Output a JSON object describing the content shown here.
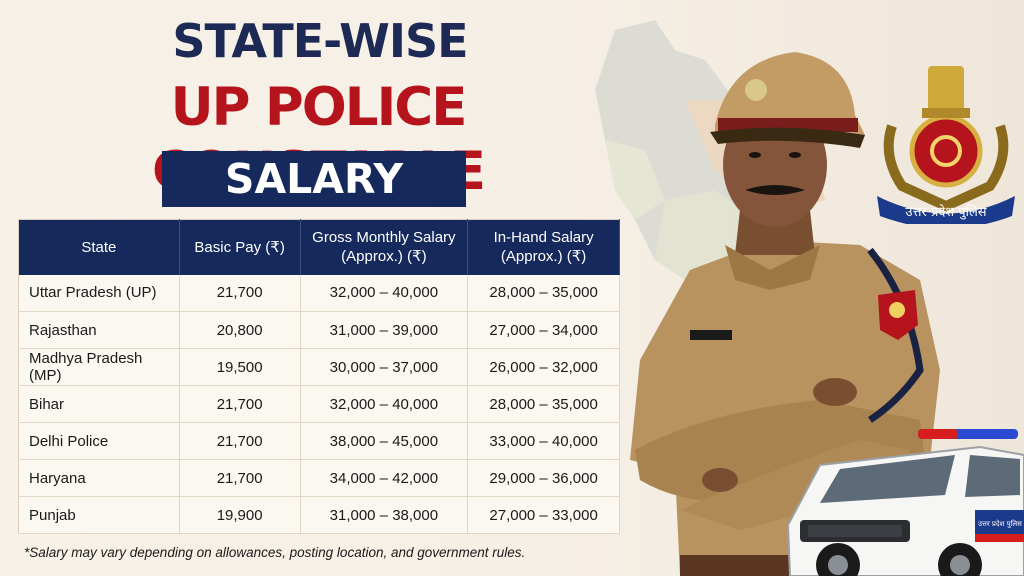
{
  "title": {
    "line1": "STATE-WISE",
    "line2": "UP POLICE CONSTABLE",
    "line3": "SALARY"
  },
  "table": {
    "headers": [
      {
        "line1": "State",
        "line2": ""
      },
      {
        "line1": "Basic Pay (₹)",
        "line2": ""
      },
      {
        "line1": "Gross Monthly Salary",
        "line2": "(Approx.) (₹)"
      },
      {
        "line1": "In-Hand Salary",
        "line2": "(Approx.) (₹)"
      }
    ],
    "rows": [
      [
        "Uttar Pradesh (UP)",
        "21,700",
        "32,000 – 40,000",
        "28,000 – 35,000"
      ],
      [
        "Rajasthan",
        "20,800",
        "31,000 – 39,000",
        "27,000 – 34,000"
      ],
      [
        "Madhya Pradesh (MP)",
        "19,500",
        "30,000 – 37,000",
        "26,000 – 32,000"
      ],
      [
        "Bihar",
        "21,700",
        "32,000 – 40,000",
        "28,000 – 35,000"
      ],
      [
        "Delhi Police",
        "21,700",
        "38,000 – 45,000",
        "33,000 – 40,000"
      ],
      [
        "Haryana",
        "21,700",
        "34,000 – 42,000",
        "29,000 – 36,000"
      ],
      [
        "Punjab",
        "19,900",
        "31,000 – 38,000",
        "27,000 – 33,000"
      ]
    ]
  },
  "footnote": "*Salary may vary depending on allowances, posting location, and government rules.",
  "emblem": {
    "text": "उत्तर प्रदेश पुलिस"
  },
  "vehicle": {
    "door_text": "उत्तर प्रदेश पुलिस"
  },
  "colors": {
    "navy": "#16295c",
    "red": "#b5141c",
    "khaki": "#b8935f"
  }
}
